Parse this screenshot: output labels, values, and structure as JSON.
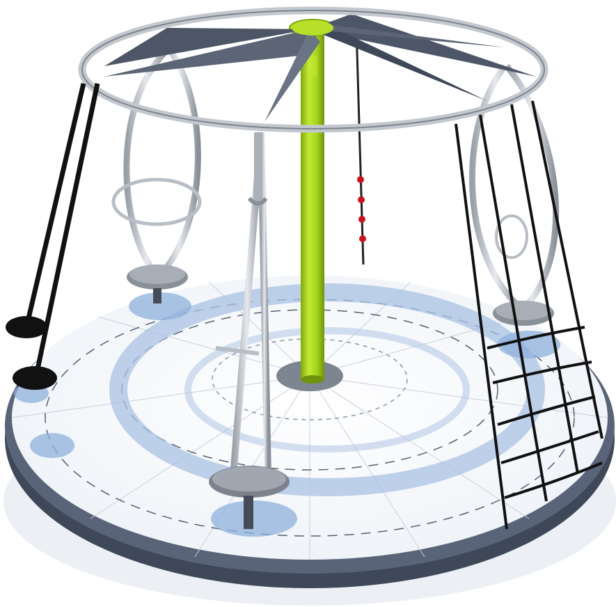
{
  "image": {
    "subject": "",
    "colors": {
      "background": "#ffffff",
      "platform_rim": "#4b5568",
      "platform_surface": "#f4f7fb",
      "shadow_blue": "#9fb9dc",
      "pole_green": "#a3d11b",
      "steel": "#c8ccd2",
      "steel_dark": "#8a9098",
      "canopy": "#4d5666",
      "rope_black": "#111111",
      "bead_red": "#c8141b"
    }
  }
}
